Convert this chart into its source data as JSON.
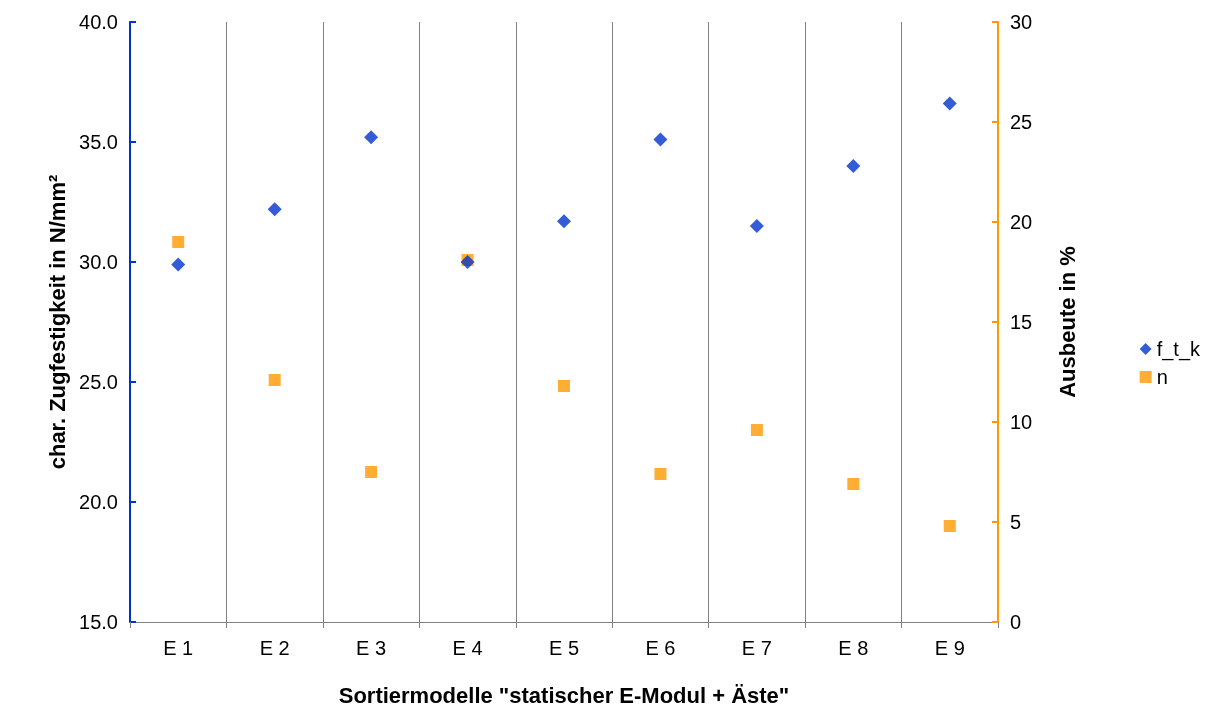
{
  "chart_data": {
    "type": "scatter",
    "xlabel": "Sortiermodelle \"statischer E-Modul + Äste\"",
    "ylabel": "char. Zugfestigkeit in N/mm²",
    "y2label": "Ausbeute in %",
    "categories": [
      "E 1",
      "E 2",
      "E 3",
      "E 4",
      "E 5",
      "E 6",
      "E 7",
      "E 8",
      "E 9"
    ],
    "series": [
      {
        "name": "f_t_k",
        "color": "#0033cc",
        "marker": "diamond",
        "values": [
          29.9,
          32.2,
          35.2,
          30.0,
          31.7,
          35.1,
          31.5,
          34.0,
          36.6
        ]
      },
      {
        "name": "n",
        "color": "#ff9900",
        "marker": "square",
        "axis": "y2",
        "values": [
          19.0,
          12.1,
          7.5,
          18.1,
          11.8,
          7.4,
          9.6,
          6.9,
          4.8
        ]
      }
    ],
    "ylim": [
      15,
      40
    ],
    "yticks": [
      {
        "value": 15,
        "label": "15.0"
      },
      {
        "value": 20,
        "label": "20.0"
      },
      {
        "value": 25,
        "label": "25.0"
      },
      {
        "value": 30,
        "label": "30.0"
      },
      {
        "value": 35,
        "label": "35.0"
      },
      {
        "value": 40,
        "label": "40.0"
      }
    ],
    "y2lim": [
      0,
      30
    ],
    "y2ticks": [
      0,
      5,
      10,
      15,
      20,
      25,
      30
    ],
    "grid": "x",
    "legend": "right"
  }
}
